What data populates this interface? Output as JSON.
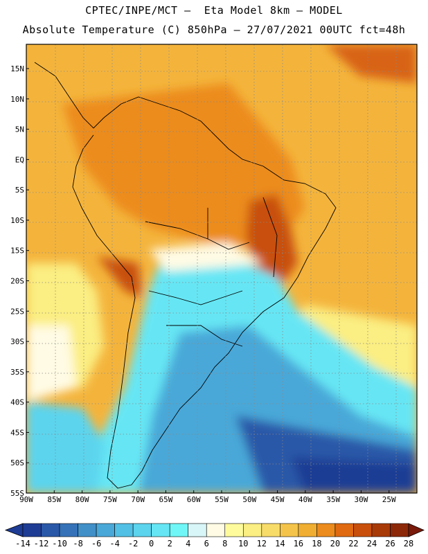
{
  "header": {
    "line1": "CPTEC/INPE/MCT –  Eta Model 8km – MODEL",
    "line2": "Absolute Temperature (C) 850hPa – 27/07/2021 00UTC fct=48h"
  },
  "map": {
    "lon_range": [
      -90,
      -20
    ],
    "lat_range": [
      -55,
      19
    ],
    "lat_ticks": [
      "15N",
      "10N",
      "5N",
      "EQ",
      "5S",
      "10S",
      "15S",
      "20S",
      "25S",
      "30S",
      "35S",
      "40S",
      "45S",
      "50S",
      "55S"
    ],
    "lon_ticks": [
      "90W",
      "85W",
      "80W",
      "75W",
      "70W",
      "65W",
      "60W",
      "55W",
      "50W",
      "45W",
      "40W",
      "35W",
      "30W",
      "25W"
    ]
  },
  "colorbar": {
    "labels": [
      "-14",
      "-12",
      "-10",
      "-8",
      "-6",
      "-4",
      "-2",
      "0",
      "2",
      "4",
      "6",
      "8",
      "10",
      "12",
      "14",
      "16",
      "18",
      "20",
      "22",
      "24",
      "26",
      "28"
    ],
    "colors": [
      "#1e3c94",
      "#2a58a8",
      "#3672b8",
      "#4290c8",
      "#4aa8d8",
      "#52c0e4",
      "#5cd4ee",
      "#66e6f4",
      "#70f6f6",
      "#d8f6f8",
      "#fffbe4",
      "#fefb9c",
      "#fbee82",
      "#f8dc6a",
      "#f4c44a",
      "#f0ae32",
      "#ec8c1e",
      "#e06a12",
      "#c8500c",
      "#a83a08",
      "#8c2808"
    ]
  }
}
